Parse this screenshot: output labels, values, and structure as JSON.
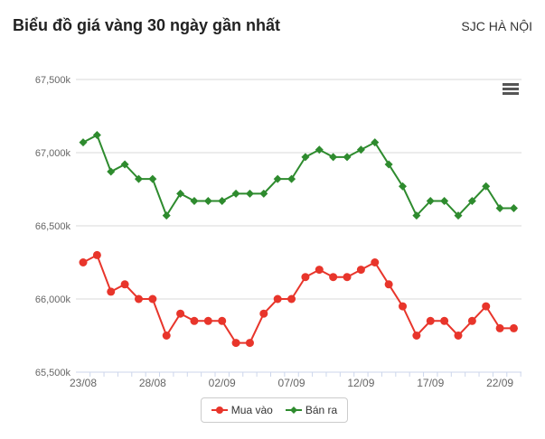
{
  "header": {
    "title": "Biểu đồ giá vàng 30 ngày gần nhất",
    "source": "SJC HÀ NỘI"
  },
  "menu_icon": "hamburger-menu-icon",
  "chart_data": {
    "type": "line",
    "title": "Biểu đồ giá vàng 30 ngày gần nhất",
    "x": [
      "23/08",
      "24/08",
      "25/08",
      "26/08",
      "27/08",
      "28/08",
      "29/08",
      "30/08",
      "31/08",
      "01/09",
      "02/09",
      "03/09",
      "04/09",
      "05/09",
      "06/09",
      "07/09",
      "08/09",
      "09/09",
      "10/09",
      "11/09",
      "12/09",
      "13/09",
      "14/09",
      "15/09",
      "16/09",
      "17/09",
      "18/09",
      "19/09",
      "20/09",
      "21/09",
      "22/09",
      "23/09"
    ],
    "xticks": [
      "23/08",
      "28/08",
      "02/09",
      "07/09",
      "12/09",
      "17/09",
      "22/09"
    ],
    "yticks": [
      "65,500k",
      "66,000k",
      "66,500k",
      "67,000k",
      "67,500k"
    ],
    "ylim": [
      65500,
      67500
    ],
    "grid": true,
    "legend": "bottom",
    "series": [
      {
        "name": "Mua vào",
        "color": "#e8352b",
        "marker": "circle",
        "values": [
          66250,
          66300,
          66050,
          66100,
          66000,
          66000,
          65750,
          65900,
          65850,
          65850,
          65850,
          65700,
          65700,
          65900,
          66000,
          66000,
          66150,
          66200,
          66150,
          66150,
          66200,
          66250,
          66100,
          65950,
          65750,
          65850,
          65850,
          65750,
          65850,
          65950,
          65800,
          65800
        ]
      },
      {
        "name": "Bán ra",
        "color": "#2e8b2e",
        "marker": "diamond",
        "values": [
          67070,
          67120,
          66870,
          66920,
          66820,
          66820,
          66570,
          66720,
          66670,
          66670,
          66670,
          66720,
          66720,
          66720,
          66820,
          66820,
          66970,
          67020,
          66970,
          66970,
          67020,
          67070,
          66920,
          66770,
          66570,
          66670,
          66670,
          66570,
          66670,
          66770,
          66620,
          66620
        ]
      }
    ]
  }
}
